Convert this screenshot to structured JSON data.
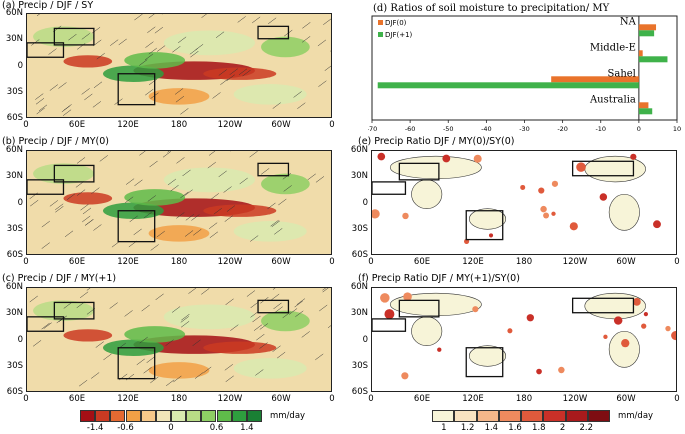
{
  "panels": {
    "a": {
      "title": "(a) Precip / DJF / SY"
    },
    "b": {
      "title": "(b) Precip / DJF / MY(0)"
    },
    "c": {
      "title": "(c) Precip / DJF / MY(+1)"
    },
    "e": {
      "title": "(e) Precip Ratio DJF / MY(0)/SY(0)"
    },
    "f": {
      "title": "(f) Precip Ratio DJF / MY(+1)/SY(0)"
    }
  },
  "map_axes": {
    "y_ticks": [
      "60N",
      "30N",
      "0",
      "30S",
      "60S"
    ],
    "x_ticks": [
      "0",
      "60E",
      "120E",
      "180",
      "120W",
      "60W",
      "0"
    ]
  },
  "colorbar_left": {
    "ticks": [
      "-1.4",
      "-0.6",
      "0",
      "0.6",
      "1.4"
    ],
    "unit": "mm/day",
    "colors": [
      "#a50f15",
      "#cb3a22",
      "#e46a32",
      "#f2a046",
      "#f7c98a",
      "#f2e6b8",
      "#d9eab0",
      "#b8dc86",
      "#8ecf64",
      "#5fbb4a",
      "#2e9e3e",
      "#1a7f34"
    ]
  },
  "colorbar_right": {
    "ticks": [
      "1",
      "1.2",
      "1.4",
      "1.6",
      "1.8",
      "2",
      "2.2"
    ],
    "unit": "mm/day",
    "colors": [
      "#f7f4d8",
      "#f9e3c1",
      "#f4b78a",
      "#ee8a5e",
      "#e05a3c",
      "#c93028",
      "#a81a1c",
      "#7e0d12"
    ]
  },
  "chart_data": {
    "type": "bar",
    "orientation": "horizontal",
    "title": "(d) Ratios of soil moisture to precipitation/  MY",
    "categories": [
      "NA",
      "Middle-E",
      "Sahel",
      "Australia"
    ],
    "series": [
      {
        "name": "DJF(0)",
        "color": "#e9732b",
        "values": [
          4.5,
          1.0,
          -23.0,
          2.5
        ]
      },
      {
        "name": "DJF(+1)",
        "color": "#3fb24a",
        "values": [
          4.0,
          7.5,
          -68.5,
          3.5
        ]
      }
    ],
    "xlim": [
      -70,
      10
    ],
    "x_ticks": [
      -70,
      -60,
      -50,
      -40,
      -30,
      -20,
      -10,
      0,
      10
    ],
    "legend": "top-left",
    "grid": false
  }
}
